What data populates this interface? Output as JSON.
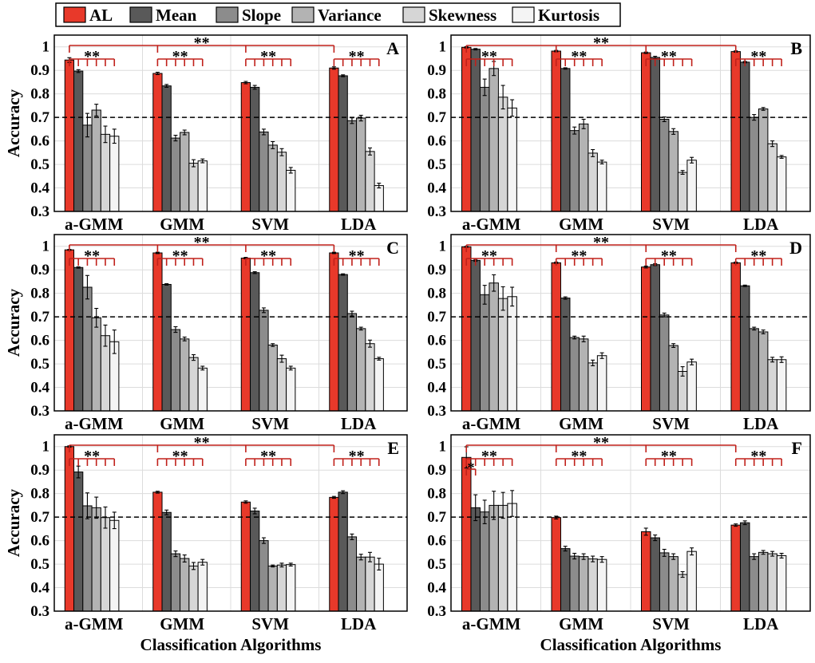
{
  "legend": {
    "entries": [
      "AL",
      "Mean",
      "Slope",
      "Variance",
      "Skewness",
      "Kurtosis"
    ],
    "colors": [
      "#e8392a",
      "#595959",
      "#8c8c8c",
      "#b3b3b3",
      "#d6d6d6",
      "#f4f4f4"
    ]
  },
  "significance_label": "**",
  "single_significance_label": "*",
  "bracket_color": "#c0201a",
  "chart_data": [
    {
      "type": "bar",
      "panel": "A",
      "ylabel": "Accuracy",
      "xlabel": "",
      "categories": [
        "a-GMM",
        "GMM",
        "SVM",
        "LDA"
      ],
      "ylim": [
        0.3,
        1.05
      ],
      "yticks": [
        0.3,
        0.4,
        0.5,
        0.6,
        0.7,
        0.8,
        0.9,
        1
      ],
      "yticklabels": [
        "0.3",
        "0.4",
        "0.5",
        "0.6",
        "0.7",
        "0.8",
        "0.9",
        "1"
      ],
      "reference_line": 0.7,
      "series": [
        {
          "name": "AL",
          "values": [
            0.944,
            0.887,
            0.848,
            0.91
          ],
          "errors": [
            0.01,
            0.005,
            0.005,
            0.005
          ]
        },
        {
          "name": "Mean",
          "values": [
            0.897,
            0.834,
            0.828,
            0.877
          ],
          "errors": [
            0.006,
            0.006,
            0.008,
            0.004
          ]
        },
        {
          "name": "Slope",
          "values": [
            0.667,
            0.612,
            0.638,
            0.686
          ],
          "errors": [
            0.05,
            0.012,
            0.012,
            0.012
          ]
        },
        {
          "name": "Variance",
          "values": [
            0.731,
            0.636,
            0.582,
            0.697
          ],
          "errors": [
            0.025,
            0.01,
            0.015,
            0.012
          ]
        },
        {
          "name": "Skewness",
          "values": [
            0.628,
            0.505,
            0.552,
            0.555
          ],
          "errors": [
            0.035,
            0.015,
            0.015,
            0.015
          ]
        },
        {
          "name": "Kurtosis",
          "values": [
            0.62,
            0.515,
            0.475,
            0.41
          ],
          "errors": [
            0.03,
            0.008,
            0.012,
            0.01
          ]
        }
      ],
      "brackets": [
        {
          "type": "span",
          "label": "**",
          "from": [
            0,
            0
          ],
          "to": [
            3,
            0
          ]
        },
        {
          "type": "group",
          "label": "**",
          "category": 0
        },
        {
          "type": "group",
          "label": "**",
          "category": 1
        },
        {
          "type": "group",
          "label": "**",
          "category": 2
        },
        {
          "type": "group",
          "label": "**",
          "category": 3
        }
      ]
    },
    {
      "type": "bar",
      "panel": "B",
      "ylabel": "",
      "xlabel": "",
      "categories": [
        "a-GMM",
        "GMM",
        "SVM",
        "LDA"
      ],
      "ylim": [
        0.3,
        1.05
      ],
      "yticks": [
        0.3,
        0.4,
        0.5,
        0.6,
        0.7,
        0.8,
        0.9,
        1
      ],
      "yticklabels": [
        "0.3",
        "0.4",
        "0.5",
        "0.6",
        "0.7",
        "0.8",
        "0.9",
        "1"
      ],
      "reference_line": 0.7,
      "series": [
        {
          "name": "AL",
          "values": [
            0.998,
            0.982,
            0.975,
            0.98
          ],
          "errors": [
            0.003,
            0.003,
            0.003,
            0.003
          ]
        },
        {
          "name": "Mean",
          "values": [
            0.99,
            0.908,
            0.955,
            0.935
          ],
          "errors": [
            0.003,
            0.003,
            0.005,
            0.003
          ]
        },
        {
          "name": "Slope",
          "values": [
            0.828,
            0.644,
            0.692,
            0.7
          ],
          "errors": [
            0.035,
            0.015,
            0.01,
            0.012
          ]
        },
        {
          "name": "Variance",
          "values": [
            0.908,
            0.672,
            0.64,
            0.736
          ],
          "errors": [
            0.03,
            0.02,
            0.012,
            0.006
          ]
        },
        {
          "name": "Skewness",
          "values": [
            0.786,
            0.548,
            0.466,
            0.588
          ],
          "errors": [
            0.05,
            0.015,
            0.008,
            0.012
          ]
        },
        {
          "name": "Kurtosis",
          "values": [
            0.74,
            0.51,
            0.518,
            0.532
          ],
          "errors": [
            0.035,
            0.008,
            0.012,
            0.006
          ]
        }
      ],
      "brackets": [
        {
          "type": "span",
          "label": "**",
          "from": [
            0,
            0
          ],
          "to": [
            3,
            0
          ]
        },
        {
          "type": "group",
          "label": "**",
          "category": 0
        },
        {
          "type": "group",
          "label": "**",
          "category": 1
        },
        {
          "type": "group",
          "label": "**",
          "category": 2
        },
        {
          "type": "group",
          "label": "**",
          "category": 3
        }
      ]
    },
    {
      "type": "bar",
      "panel": "C",
      "ylabel": "Accuracy",
      "xlabel": "",
      "categories": [
        "a-GMM",
        "GMM",
        "SVM",
        "LDA"
      ],
      "ylim": [
        0.3,
        1.05
      ],
      "yticks": [
        0.3,
        0.4,
        0.5,
        0.6,
        0.7,
        0.8,
        0.9,
        1
      ],
      "yticklabels": [
        "0.3",
        "0.4",
        "0.5",
        "0.6",
        "0.7",
        "0.8",
        "0.9",
        "1"
      ],
      "reference_line": 0.7,
      "series": [
        {
          "name": "AL",
          "values": [
            0.985,
            0.972,
            0.95,
            0.972
          ],
          "errors": [
            0.002,
            0.003,
            0.003,
            0.003
          ]
        },
        {
          "name": "Mean",
          "values": [
            0.91,
            0.838,
            0.888,
            0.88
          ],
          "errors": [
            0.003,
            0.003,
            0.004,
            0.003
          ]
        },
        {
          "name": "Slope",
          "values": [
            0.826,
            0.646,
            0.728,
            0.714
          ],
          "errors": [
            0.05,
            0.012,
            0.01,
            0.01
          ]
        },
        {
          "name": "Variance",
          "values": [
            0.696,
            0.606,
            0.58,
            0.65
          ],
          "errors": [
            0.04,
            0.008,
            0.006,
            0.006
          ]
        },
        {
          "name": "Skewness",
          "values": [
            0.62,
            0.527,
            0.522,
            0.586
          ],
          "errors": [
            0.045,
            0.012,
            0.015,
            0.015
          ]
        },
        {
          "name": "Kurtosis",
          "values": [
            0.594,
            0.482,
            0.482,
            0.522
          ],
          "errors": [
            0.05,
            0.008,
            0.008,
            0.006
          ]
        }
      ],
      "brackets": [
        {
          "type": "span",
          "label": "**",
          "from": [
            0,
            0
          ],
          "to": [
            3,
            0
          ]
        },
        {
          "type": "group",
          "label": "**",
          "category": 0
        },
        {
          "type": "group",
          "label": "**",
          "category": 1
        },
        {
          "type": "group",
          "label": "**",
          "category": 2
        },
        {
          "type": "group",
          "label": "**",
          "category": 3
        }
      ]
    },
    {
      "type": "bar",
      "panel": "D",
      "ylabel": "",
      "xlabel": "",
      "categories": [
        "a-GMM",
        "GMM",
        "SVM",
        "LDA"
      ],
      "ylim": [
        0.3,
        1.05
      ],
      "yticks": [
        0.3,
        0.4,
        0.5,
        0.6,
        0.7,
        0.8,
        0.9,
        1
      ],
      "yticklabels": [
        "0.3",
        "0.4",
        "0.5",
        "0.6",
        "0.7",
        "0.8",
        "0.9",
        "1"
      ],
      "reference_line": 0.7,
      "series": [
        {
          "name": "AL",
          "values": [
            0.998,
            0.93,
            0.912,
            0.93
          ],
          "errors": [
            0.002,
            0.003,
            0.004,
            0.003
          ]
        },
        {
          "name": "Mean",
          "values": [
            0.94,
            0.78,
            0.922,
            0.832
          ],
          "errors": [
            0.004,
            0.005,
            0.004,
            0.003
          ]
        },
        {
          "name": "Slope",
          "values": [
            0.794,
            0.612,
            0.708,
            0.65
          ],
          "errors": [
            0.04,
            0.006,
            0.008,
            0.006
          ]
        },
        {
          "name": "Variance",
          "values": [
            0.844,
            0.606,
            0.578,
            0.636
          ],
          "errors": [
            0.035,
            0.012,
            0.008,
            0.008
          ]
        },
        {
          "name": "Skewness",
          "values": [
            0.778,
            0.504,
            0.468,
            0.518
          ],
          "errors": [
            0.05,
            0.012,
            0.02,
            0.01
          ]
        },
        {
          "name": "Kurtosis",
          "values": [
            0.786,
            0.535,
            0.508,
            0.518
          ],
          "errors": [
            0.04,
            0.012,
            0.012,
            0.012
          ]
        }
      ],
      "brackets": [
        {
          "type": "span",
          "label": "**",
          "from": [
            0,
            0
          ],
          "to": [
            3,
            0
          ]
        },
        {
          "type": "group",
          "label": "**",
          "category": 0
        },
        {
          "type": "group",
          "label": "**",
          "category": 1
        },
        {
          "type": "group",
          "label": "**",
          "category": 2
        },
        {
          "type": "group",
          "label": "**",
          "category": 3
        }
      ]
    },
    {
      "type": "bar",
      "panel": "E",
      "ylabel": "Accuracy",
      "xlabel": "Classification Algorithms",
      "categories": [
        "a-GMM",
        "GMM",
        "SVM",
        "LDA"
      ],
      "ylim": [
        0.3,
        1.05
      ],
      "yticks": [
        0.3,
        0.4,
        0.5,
        0.6,
        0.7,
        0.8,
        0.9,
        1
      ],
      "yticklabels": [
        "0.3",
        "0.4",
        "0.5",
        "0.6",
        "0.7",
        "0.8",
        "0.9",
        "1"
      ],
      "reference_line": 0.7,
      "series": [
        {
          "name": "AL",
          "values": [
            1.0,
            0.806,
            0.764,
            0.784
          ],
          "errors": [
            0.003,
            0.004,
            0.005,
            0.004
          ]
        },
        {
          "name": "Mean",
          "values": [
            0.892,
            0.72,
            0.726,
            0.806
          ],
          "errors": [
            0.025,
            0.01,
            0.012,
            0.006
          ]
        },
        {
          "name": "Slope",
          "values": [
            0.748,
            0.544,
            0.6,
            0.616
          ],
          "errors": [
            0.055,
            0.012,
            0.012,
            0.012
          ]
        },
        {
          "name": "Variance",
          "values": [
            0.74,
            0.524,
            0.492,
            0.53
          ],
          "errors": [
            0.045,
            0.015,
            0.004,
            0.012
          ]
        },
        {
          "name": "Skewness",
          "values": [
            0.698,
            0.492,
            0.496,
            0.53
          ],
          "errors": [
            0.045,
            0.015,
            0.008,
            0.02
          ]
        },
        {
          "name": "Kurtosis",
          "values": [
            0.686,
            0.508,
            0.498,
            0.5
          ],
          "errors": [
            0.035,
            0.012,
            0.006,
            0.025
          ]
        }
      ],
      "brackets": [
        {
          "type": "span",
          "label": "**",
          "from": [
            0,
            0
          ],
          "to": [
            3,
            0
          ]
        },
        {
          "type": "group",
          "label": "**",
          "category": 0
        },
        {
          "type": "group",
          "label": "**",
          "category": 1
        },
        {
          "type": "group",
          "label": "**",
          "category": 2
        },
        {
          "type": "group",
          "label": "**",
          "category": 3
        }
      ]
    },
    {
      "type": "bar",
      "panel": "F",
      "ylabel": "",
      "xlabel": "Classification Algorithms",
      "categories": [
        "a-GMM",
        "GMM",
        "SVM",
        "LDA"
      ],
      "ylim": [
        0.3,
        1.05
      ],
      "yticks": [
        0.3,
        0.4,
        0.5,
        0.6,
        0.7,
        0.8,
        0.9,
        1
      ],
      "yticklabels": [
        "0.3",
        "0.4",
        "0.5",
        "0.6",
        "0.7",
        "0.8",
        "0.9",
        "1"
      ],
      "reference_line": 0.7,
      "series": [
        {
          "name": "AL",
          "values": [
            0.954,
            0.698,
            0.638,
            0.666
          ],
          "errors": [
            0.045,
            0.006,
            0.015,
            0.005
          ]
        },
        {
          "name": "Mean",
          "values": [
            0.74,
            0.566,
            0.612,
            0.676
          ],
          "errors": [
            0.055,
            0.01,
            0.012,
            0.008
          ]
        },
        {
          "name": "Slope",
          "values": [
            0.722,
            0.534,
            0.548,
            0.532
          ],
          "errors": [
            0.05,
            0.012,
            0.015,
            0.012
          ]
        },
        {
          "name": "Variance",
          "values": [
            0.75,
            0.532,
            0.532,
            0.55
          ],
          "errors": [
            0.06,
            0.012,
            0.012,
            0.008
          ]
        },
        {
          "name": "Skewness",
          "values": [
            0.75,
            0.522,
            0.456,
            0.544
          ],
          "errors": [
            0.055,
            0.012,
            0.012,
            0.01
          ]
        },
        {
          "name": "Kurtosis",
          "values": [
            0.758,
            0.52,
            0.554,
            0.536
          ],
          "errors": [
            0.055,
            0.012,
            0.015,
            0.01
          ]
        }
      ],
      "brackets": [
        {
          "type": "span",
          "label": "**",
          "from": [
            0,
            0
          ],
          "to": [
            3,
            0
          ]
        },
        {
          "type": "single",
          "label": "*",
          "category": 0,
          "from": 0,
          "to": 1
        },
        {
          "type": "group",
          "label": "**",
          "category": 0
        },
        {
          "type": "group",
          "label": "**",
          "category": 1
        },
        {
          "type": "group",
          "label": "**",
          "category": 2
        },
        {
          "type": "group",
          "label": "**",
          "category": 3
        }
      ]
    }
  ]
}
